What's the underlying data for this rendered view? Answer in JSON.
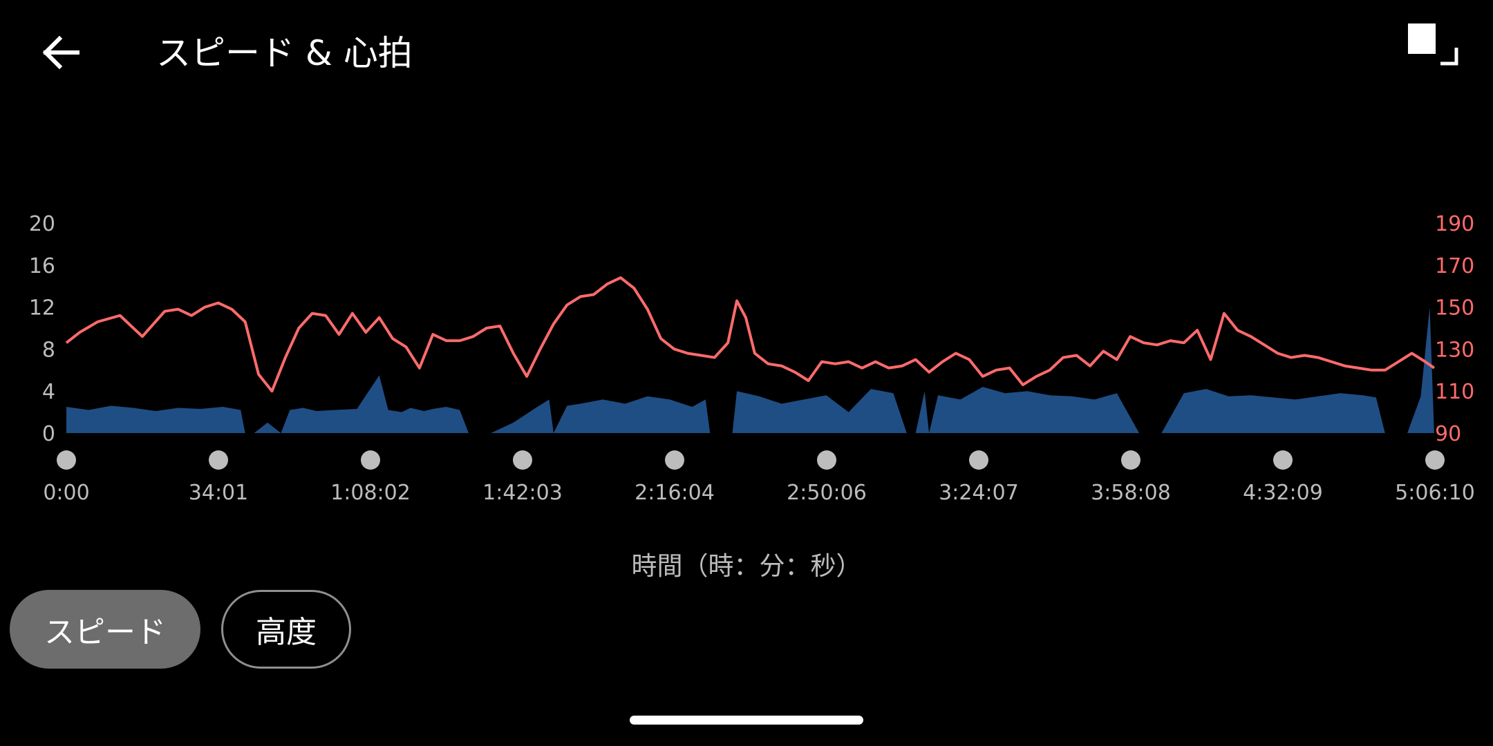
{
  "header": {
    "title": "スピード & 心拍"
  },
  "icons": {
    "back": "arrow-left-icon",
    "fullscreen": "fullscreen-icon"
  },
  "colors": {
    "heart_rate": "#ff6b6b",
    "speed": "#1f4e85",
    "axis_text": "#bdbdbd",
    "marker": "#bdbdbd"
  },
  "chart_data": {
    "type": "area",
    "xlabel": "時間（時：分：秒）",
    "x_ticks": [
      "0:00",
      "34:01",
      "1:08:02",
      "1:42:03",
      "2:16:04",
      "2:50:06",
      "3:24:07",
      "3:58:08",
      "4:32:09",
      "5:06:10"
    ],
    "y_left": {
      "ticks": [
        0,
        4,
        8,
        12,
        16,
        20
      ],
      "ylim": [
        0,
        20
      ]
    },
    "y_right": {
      "ticks": [
        90,
        110,
        130,
        150,
        170,
        190
      ],
      "ylim": [
        90,
        190
      ]
    },
    "x_range_minutes": [
      0,
      306.17
    ],
    "series": [
      {
        "axis": "right",
        "kind": "line",
        "x": [
          0,
          3,
          7,
          12,
          17,
          22,
          25,
          28,
          31,
          34,
          37,
          40,
          43,
          46,
          49,
          52,
          55,
          58,
          61,
          64,
          67,
          70,
          73,
          76,
          79,
          82,
          85,
          88,
          91,
          94,
          97,
          100,
          103,
          106,
          109,
          112,
          115,
          118,
          121,
          124,
          127,
          130,
          133,
          136,
          139,
          142,
          145,
          148,
          150,
          152,
          154,
          157,
          160,
          163,
          166,
          169,
          172,
          175,
          178,
          181,
          184,
          187,
          190,
          193,
          196,
          199,
          202,
          205,
          208,
          211,
          214,
          217,
          220,
          223,
          226,
          229,
          232,
          235,
          238,
          241,
          244,
          247,
          250,
          253,
          256,
          259,
          262,
          265,
          268,
          271,
          274,
          277,
          280,
          283,
          286,
          289,
          292,
          295,
          298,
          301,
          304,
          306
        ],
        "values": [
          133,
          138,
          143,
          146,
          136,
          148,
          149,
          146,
          150,
          152,
          149,
          143,
          118,
          110,
          126,
          140,
          147,
          146,
          137,
          147,
          138,
          145,
          135,
          131,
          121,
          137,
          134,
          134,
          136,
          140,
          141,
          128,
          117,
          130,
          142,
          151,
          155,
          156,
          161,
          164,
          159,
          149,
          135,
          130,
          128,
          127,
          126,
          133,
          153,
          145,
          128,
          123,
          122,
          119,
          115,
          124,
          123,
          124,
          121,
          124,
          121,
          122,
          125,
          119,
          124,
          128,
          125,
          117,
          120,
          121,
          113,
          117,
          120,
          126,
          127,
          122,
          129,
          125,
          136,
          133,
          132,
          134,
          133,
          139,
          125,
          147,
          139,
          136,
          132,
          128,
          126,
          127,
          126,
          124,
          122,
          121,
          120,
          120,
          124,
          128,
          124,
          121
        ],
        "name": ""
      },
      {
        "axis": "left",
        "kind": "area",
        "x": [
          0,
          5,
          10,
          15,
          20,
          25,
          30,
          35,
          39,
          40,
          42,
          45,
          48,
          50,
          53,
          56,
          60,
          65,
          70,
          72,
          75,
          77,
          80,
          82,
          85,
          88,
          90,
          95,
          100,
          105,
          108,
          109,
          112,
          115,
          120,
          125,
          130,
          135,
          140,
          143,
          144,
          149,
          150,
          155,
          160,
          165,
          170,
          175,
          180,
          185,
          188,
          190,
          192,
          193,
          195,
          200,
          205,
          210,
          215,
          220,
          225,
          230,
          235,
          240,
          245,
          250,
          255,
          260,
          265,
          270,
          275,
          280,
          285,
          290,
          293,
          295,
          300,
          303,
          305,
          306
        ],
        "values": [
          2.5,
          2.2,
          2.6,
          2.4,
          2.1,
          2.4,
          2.3,
          2.5,
          2.2,
          0,
          0,
          1,
          0,
          2.2,
          2.4,
          2.1,
          2.2,
          2.3,
          5.5,
          2.2,
          2,
          2.4,
          2.1,
          2.3,
          2.5,
          2.2,
          0,
          0,
          1,
          2.4,
          3.2,
          0,
          2.6,
          2.8,
          3.2,
          2.8,
          3.5,
          3.2,
          2.5,
          3.2,
          0,
          0,
          4,
          3.5,
          2.8,
          3.2,
          3.6,
          2,
          4.2,
          3.8,
          0,
          0,
          4,
          0,
          3.6,
          3.2,
          4.4,
          3.8,
          4,
          3.6,
          3.5,
          3.2,
          3.8,
          0,
          0,
          3.8,
          4.2,
          3.5,
          3.6,
          3.4,
          3.2,
          3.5,
          3.8,
          3.6,
          3.4,
          0,
          0,
          3.5,
          12,
          0
        ],
        "name": ""
      }
    ]
  },
  "buttons": {
    "speed": "スピード",
    "altitude": "高度"
  }
}
